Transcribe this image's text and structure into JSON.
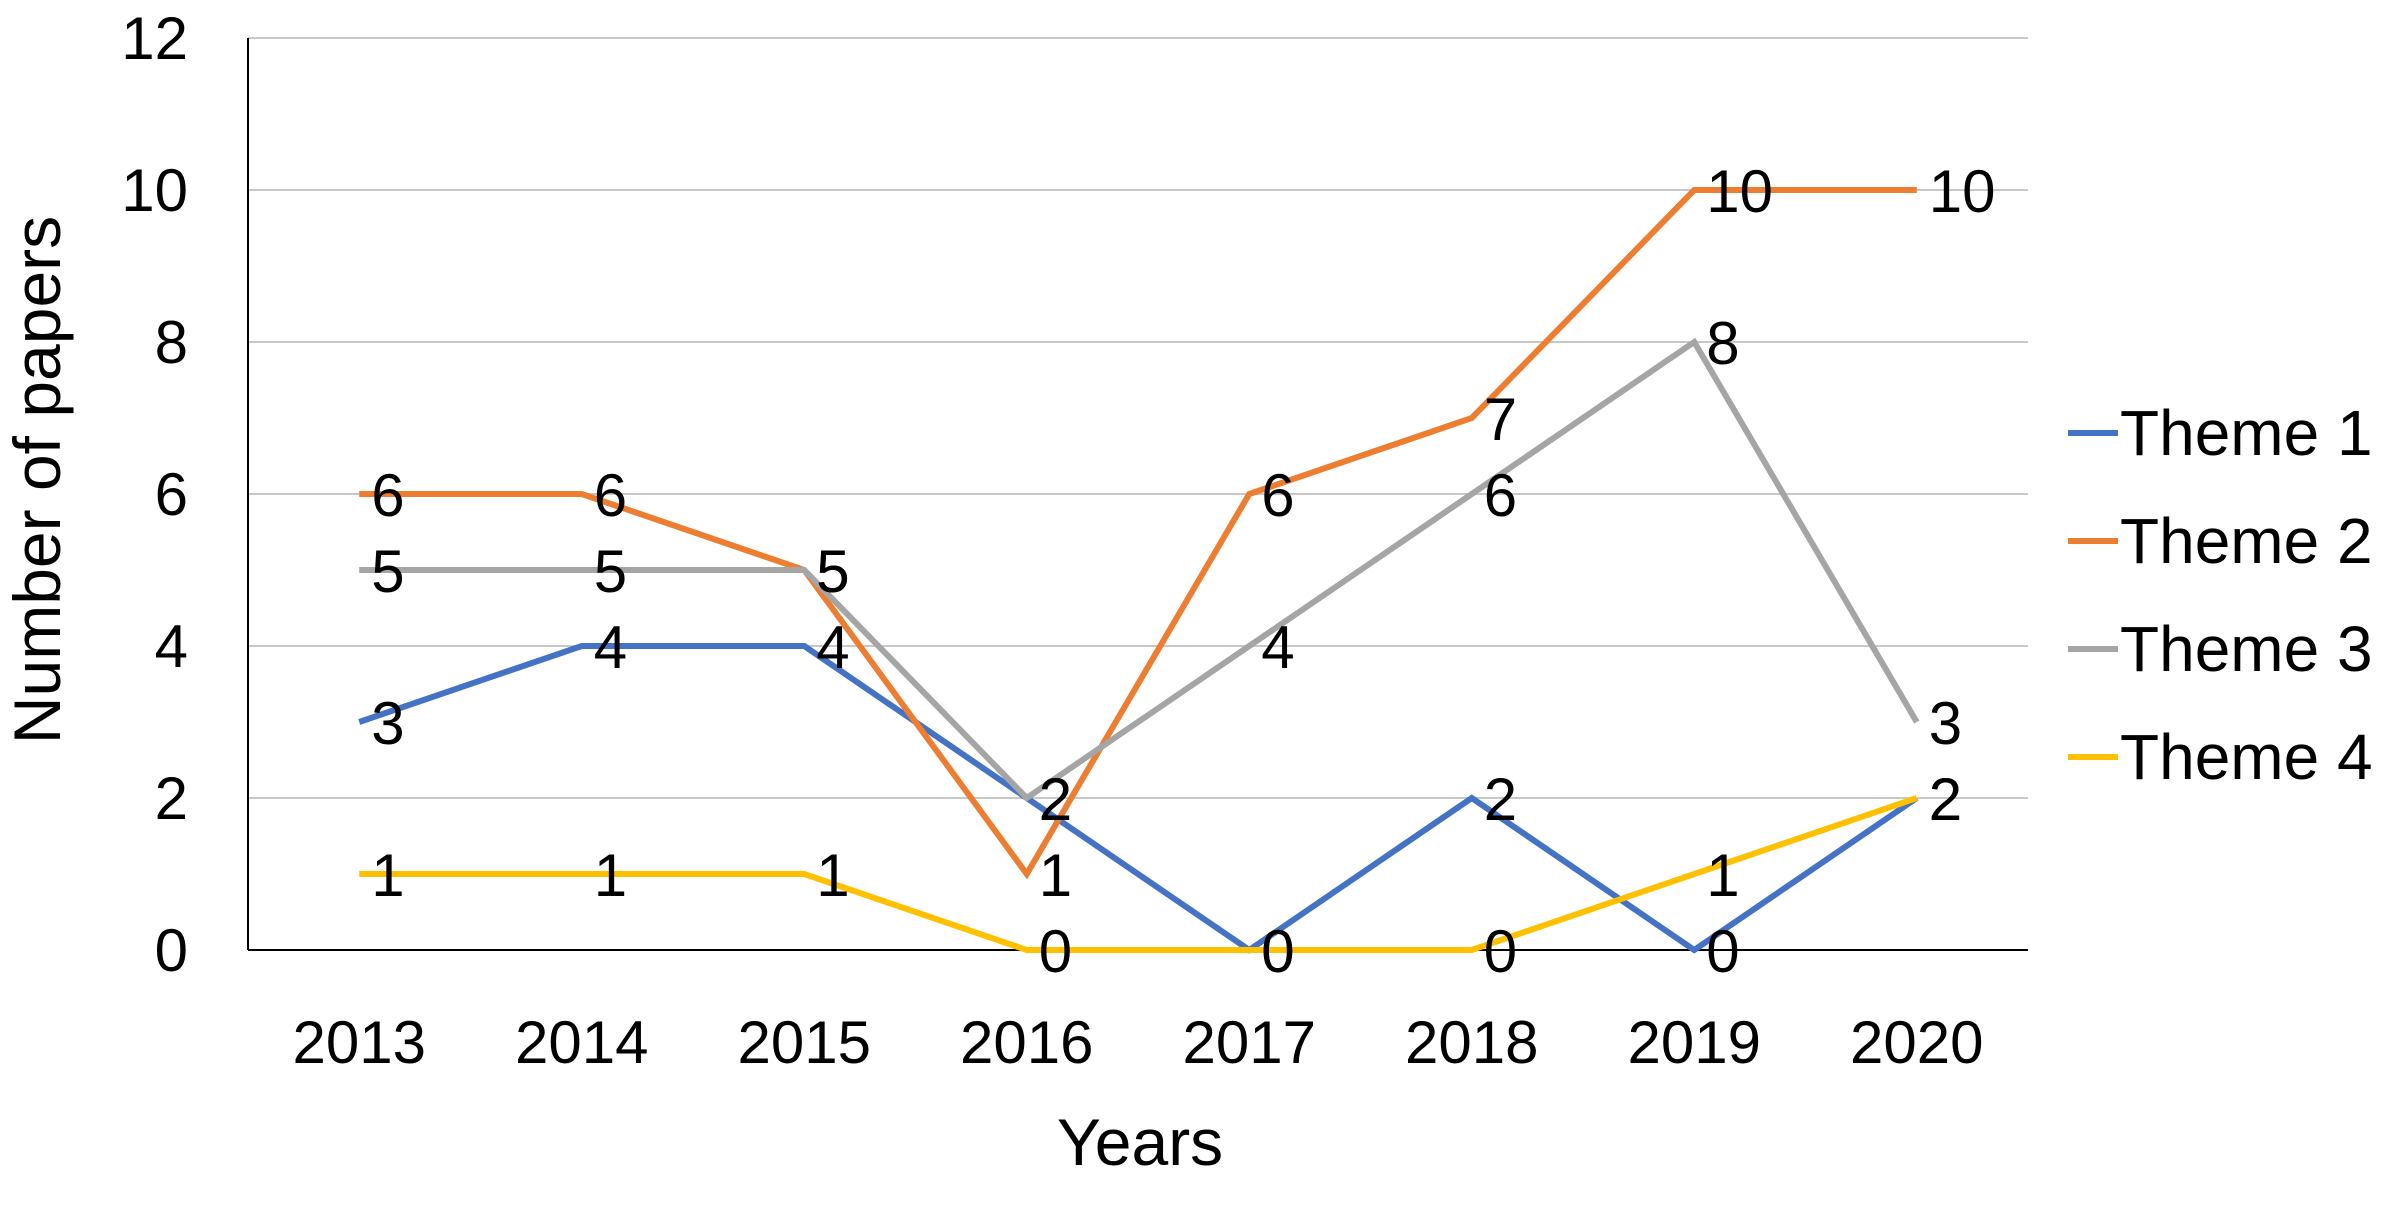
{
  "chart_data": {
    "type": "line",
    "title": "",
    "xlabel": "Years",
    "ylabel": "Number of papers",
    "categories": [
      "2013",
      "2014",
      "2015",
      "2016",
      "2017",
      "2018",
      "2019",
      "2020"
    ],
    "ylim": [
      0,
      12
    ],
    "yticks": [
      0,
      2,
      4,
      6,
      8,
      10,
      12
    ],
    "grid": true,
    "legend_position": "right",
    "series": [
      {
        "name": "Theme 1",
        "color": "#4472C4",
        "values": [
          3,
          4,
          4,
          2,
          0,
          2,
          0,
          2
        ]
      },
      {
        "name": "Theme 2",
        "color": "#ED7D31",
        "values": [
          6,
          6,
          5,
          1,
          6,
          7,
          10,
          10
        ]
      },
      {
        "name": "Theme 3",
        "color": "#A5A5A5",
        "values": [
          5,
          5,
          5,
          2,
          4,
          6,
          8,
          3
        ]
      },
      {
        "name": "Theme 4",
        "color": "#FFC000",
        "values": [
          1,
          1,
          1,
          0,
          0,
          0,
          1,
          2
        ]
      }
    ]
  }
}
